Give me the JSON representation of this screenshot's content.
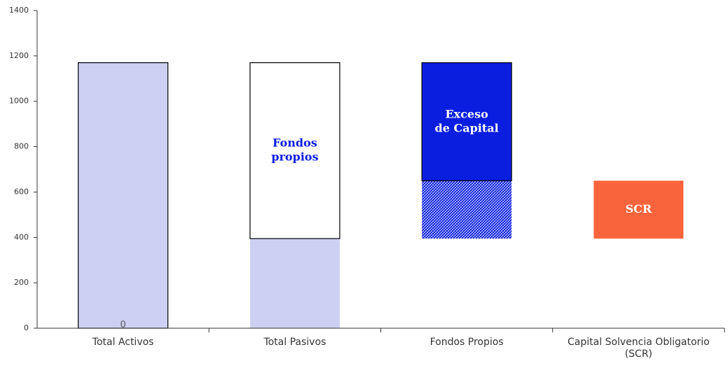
{
  "chart_data": {
    "type": "bar",
    "stacked": true,
    "title": "",
    "xlabel": "",
    "ylabel": "",
    "ylim": [
      0,
      1400
    ],
    "yticks": [
      0,
      200,
      400,
      600,
      800,
      1000,
      1200,
      1400
    ],
    "grid": false,
    "legend": "none",
    "categories": [
      "Total Activos",
      "Total Pasivos",
      "Fondos Propios",
      "Capital Solvencia Obligatorio (SCR)"
    ],
    "category_lines": [
      [
        "Total Activos"
      ],
      [
        "Total Pasivos"
      ],
      [
        "Fondos Propios"
      ],
      [
        "Capital Solvencia Obligatorio",
        "(SCR)"
      ]
    ],
    "segments": [
      {
        "category": 0,
        "bottom": 0,
        "top": 1170,
        "fill": "#cdd0f2",
        "outline": true,
        "label_lines": [],
        "label_color": ""
      },
      {
        "category": 1,
        "bottom": 0,
        "top": 395,
        "fill": "#cdd0f2",
        "outline": false,
        "label_lines": [],
        "label_color": ""
      },
      {
        "category": 1,
        "bottom": 395,
        "top": 1170,
        "fill": "#ffffff",
        "outline": true,
        "label_lines": [
          "Fondos",
          "propios"
        ],
        "label_color": "#0a1ee0"
      },
      {
        "category": 2,
        "bottom": 395,
        "top": 650,
        "fill": "pattern",
        "outline": false,
        "label_lines": [],
        "label_color": ""
      },
      {
        "category": 2,
        "bottom": 650,
        "top": 1170,
        "fill": "#0a1ee0",
        "outline": true,
        "label_lines": [
          "Exceso",
          "de Capital"
        ],
        "label_color": "#ffffff"
      },
      {
        "category": 3,
        "bottom": 395,
        "top": 650,
        "fill": "#fa643c",
        "outline": false,
        "label_lines": [
          "SCR"
        ],
        "label_color": "#ffffff"
      }
    ],
    "annotations": [
      {
        "category": 0,
        "value": 0,
        "text": "0"
      }
    ],
    "colors": {
      "light_lavender": "#cdd0f2",
      "blue": "#0a1ee0",
      "orange": "#fa643c",
      "hatch": "#0a1ee0"
    }
  }
}
